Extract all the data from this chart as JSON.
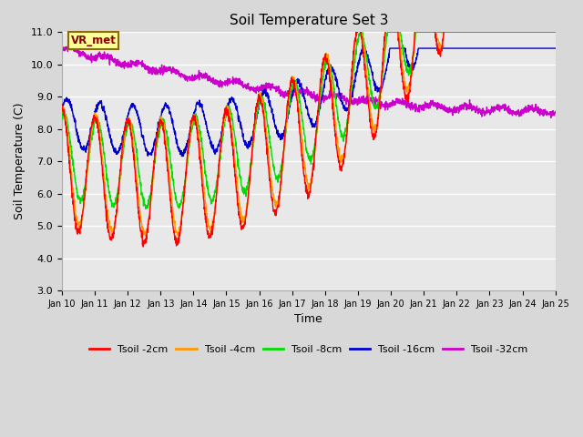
{
  "title": "Soil Temperature Set 3",
  "xlabel": "Time",
  "ylabel": "Soil Temperature (C)",
  "ylim": [
    3.0,
    11.0
  ],
  "yticks": [
    3.0,
    4.0,
    5.0,
    6.0,
    7.0,
    8.0,
    9.0,
    10.0,
    11.0
  ],
  "xtick_labels": [
    "Jan 10",
    "Jan 11",
    "Jan 12",
    "Jan 13",
    "Jan 14",
    "Jan 15",
    "Jan 16",
    "Jan 17",
    "Jan 18",
    "Jan 19",
    "Jan 20",
    "Jan 21",
    "Jan 22",
    "Jan 23",
    "Jan 24",
    "Jan 25"
  ],
  "legend_labels": [
    "Tsoil -2cm",
    "Tsoil -4cm",
    "Tsoil -8cm",
    "Tsoil -16cm",
    "Tsoil -32cm"
  ],
  "line_colors": [
    "#ff0000",
    "#ff9900",
    "#00dd00",
    "#0000cc",
    "#cc00cc"
  ],
  "bg_color": "#e8e8e8",
  "fig_color": "#d8d8d8",
  "grid_color": "#ffffff",
  "annotation_text": "VR_met",
  "annotation_color": "#8b0000",
  "annotation_bg": "#ffff99",
  "annotation_border": "#8b6914",
  "n_days": 15,
  "samples_per_day": 144
}
